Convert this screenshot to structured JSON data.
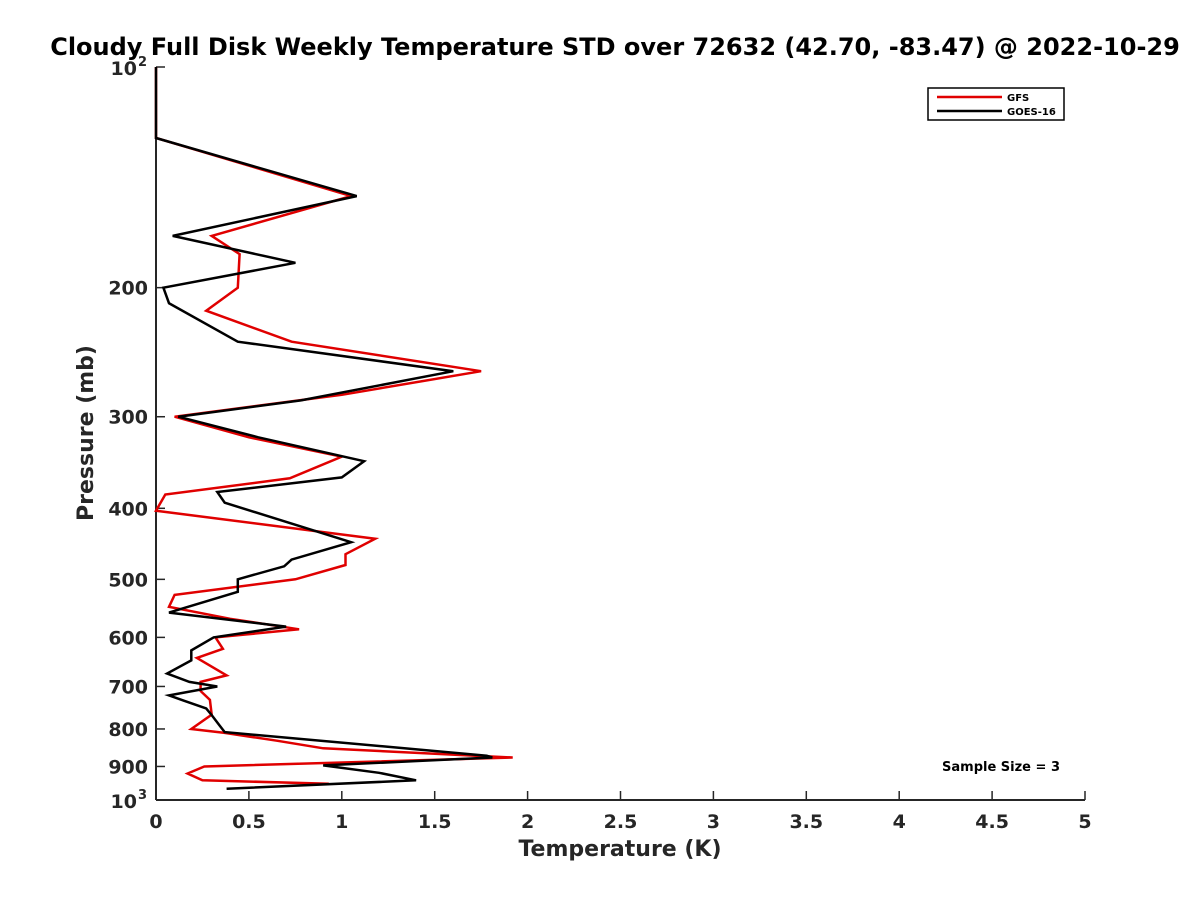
{
  "chart_data": {
    "type": "line",
    "title": "Cloudy Full Disk Weekly Temperature STD over 72632 (42.70, -83.47) @ 2022-10-29",
    "xlabel": "Temperature (K)",
    "ylabel": "Pressure (mb)",
    "xlim": [
      0,
      5
    ],
    "ylim": [
      100,
      1000
    ],
    "yscale": "log",
    "y_reversed": true,
    "grid": false,
    "x_ticks": [
      "0",
      "0.5",
      "1",
      "1.5",
      "2",
      "2.5",
      "3",
      "3.5",
      "4",
      "4.5",
      "5"
    ],
    "y_ticks": [
      {
        "value": 100,
        "base": "10",
        "exp": "2"
      },
      {
        "value": 200,
        "label": "200"
      },
      {
        "value": 300,
        "label": "300"
      },
      {
        "value": 400,
        "label": "400"
      },
      {
        "value": 500,
        "label": "500"
      },
      {
        "value": 600,
        "label": "600"
      },
      {
        "value": 700,
        "label": "700"
      },
      {
        "value": 800,
        "label": "800"
      },
      {
        "value": 900,
        "label": "900"
      },
      {
        "value": 1000,
        "base": "10",
        "exp": "3"
      }
    ],
    "legend_position": "top-right",
    "annotation": "Sample Size = 3",
    "series": [
      {
        "name": "GFS",
        "color": "#e00000",
        "points": [
          [
            0.0,
            100
          ],
          [
            0.0,
            125
          ],
          [
            1.05,
            150
          ],
          [
            0.3,
            170
          ],
          [
            0.45,
            180
          ],
          [
            0.44,
            200
          ],
          [
            0.27,
            215
          ],
          [
            0.73,
            237
          ],
          [
            1.75,
            260
          ],
          [
            1.0,
            280
          ],
          [
            0.1,
            300
          ],
          [
            0.5,
            320
          ],
          [
            1.0,
            340
          ],
          [
            0.72,
            364
          ],
          [
            0.05,
            383
          ],
          [
            0.0,
            403
          ],
          [
            1.18,
            440
          ],
          [
            1.02,
            462
          ],
          [
            1.02,
            478
          ],
          [
            0.75,
            500
          ],
          [
            0.1,
            525
          ],
          [
            0.07,
            545
          ],
          [
            0.4,
            566
          ],
          [
            0.77,
            585
          ],
          [
            0.32,
            600
          ],
          [
            0.36,
            622
          ],
          [
            0.22,
            640
          ],
          [
            0.38,
            676
          ],
          [
            0.24,
            690
          ],
          [
            0.24,
            710
          ],
          [
            0.29,
            730
          ],
          [
            0.3,
            765
          ],
          [
            0.19,
            800
          ],
          [
            0.37,
            810
          ],
          [
            0.65,
            830
          ],
          [
            0.9,
            850
          ],
          [
            1.92,
            875
          ],
          [
            0.26,
            900
          ],
          [
            0.17,
            920
          ],
          [
            0.25,
            940
          ],
          [
            0.93,
            950
          ]
        ]
      },
      {
        "name": "GOES-16",
        "color": "#000000",
        "points": [
          [
            0.0,
            100
          ],
          [
            0.0,
            125
          ],
          [
            1.08,
            150
          ],
          [
            0.09,
            170
          ],
          [
            0.75,
            185
          ],
          [
            0.04,
            200
          ],
          [
            0.07,
            210
          ],
          [
            0.44,
            237
          ],
          [
            1.6,
            260
          ],
          [
            0.78,
            285
          ],
          [
            0.12,
            300
          ],
          [
            0.55,
            320
          ],
          [
            1.12,
            345
          ],
          [
            1.0,
            363
          ],
          [
            0.33,
            380
          ],
          [
            0.37,
            393
          ],
          [
            1.05,
            445
          ],
          [
            0.73,
            470
          ],
          [
            0.69,
            480
          ],
          [
            0.44,
            500
          ],
          [
            0.44,
            520
          ],
          [
            0.07,
            555
          ],
          [
            0.7,
            580
          ],
          [
            0.31,
            600
          ],
          [
            0.19,
            625
          ],
          [
            0.19,
            645
          ],
          [
            0.06,
            672
          ],
          [
            0.18,
            690
          ],
          [
            0.33,
            700
          ],
          [
            0.07,
            720
          ],
          [
            0.15,
            732
          ],
          [
            0.27,
            750
          ],
          [
            0.3,
            766
          ],
          [
            0.34,
            790
          ],
          [
            0.37,
            808
          ],
          [
            1.78,
            870
          ],
          [
            1.81,
            875
          ],
          [
            0.9,
            897
          ],
          [
            1.2,
            918
          ],
          [
            1.4,
            940
          ],
          [
            0.38,
            965
          ]
        ]
      }
    ]
  }
}
